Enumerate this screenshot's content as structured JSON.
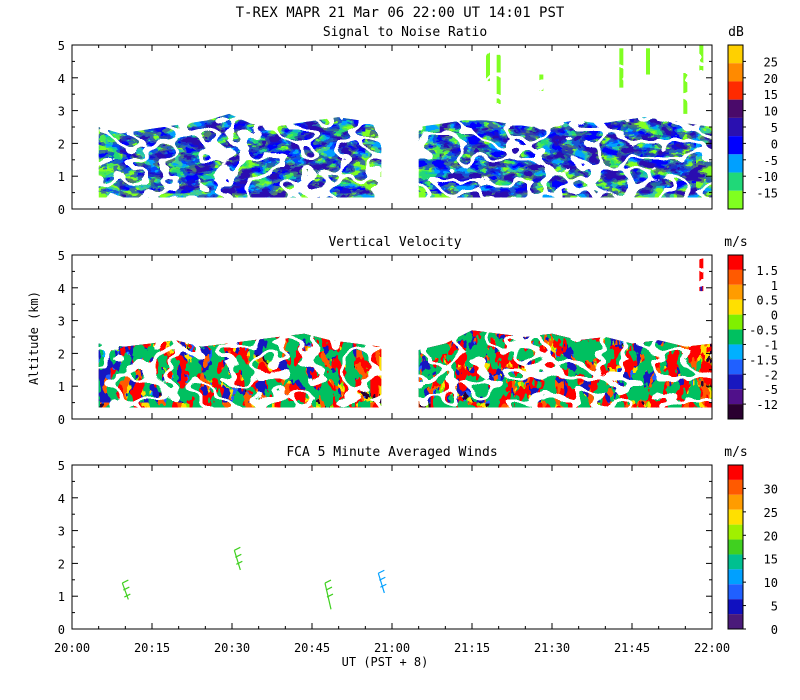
{
  "title": "T-REX   MAPR 21 Mar 06   22:00 UT   14:01   PST",
  "chart_data": [
    {
      "type": "heatmap",
      "title": "Signal to Noise Ratio",
      "ylabel": "",
      "ylim": [
        0,
        5
      ],
      "yticks": [
        "0",
        "1",
        "2",
        "3",
        "4",
        "5"
      ],
      "colorbar": {
        "unit": "dB",
        "labels": [
          "25",
          "20",
          "15",
          "10",
          "5",
          "0",
          "-5",
          "-10",
          "-15"
        ],
        "colors": [
          "#ffd000",
          "#ff8a00",
          "#ff2a00",
          "#4a0a6a",
          "#2a10b0",
          "#0000ff",
          "#00a0ff",
          "#20d878",
          "#80ff20"
        ]
      },
      "data_gap_ut": [
        "20:58",
        "21:05"
      ],
      "base_height_km": 0.35,
      "top_height_km": [
        2.5,
        2.3,
        2.4,
        2.5,
        2.6,
        2.7,
        2.9,
        2.6,
        2.5,
        2.6,
        2.7,
        2.8,
        2.7,
        2.6,
        2.5,
        2.6,
        2.7,
        2.7,
        2.6,
        2.5,
        2.6,
        2.7,
        2.6,
        2.7,
        2.8,
        2.7,
        2.6,
        2.5
      ]
    },
    {
      "type": "heatmap",
      "title": "Vertical Velocity",
      "ylabel": "Altitude (km)",
      "ylim": [
        0,
        5
      ],
      "yticks": [
        "0",
        "1",
        "2",
        "3",
        "4",
        "5"
      ],
      "colorbar": {
        "unit": "m/s",
        "labels": [
          "1.5",
          "1",
          "0.5",
          "0",
          "-0.5",
          "-1",
          "-1.5",
          "-2",
          "-5",
          "-12"
        ],
        "colors": [
          "#ff0000",
          "#ff5a00",
          "#ff9c00",
          "#ffe000",
          "#80f000",
          "#00c060",
          "#00b0ff",
          "#2060ff",
          "#1818c0",
          "#50108a",
          "#2a0030"
        ]
      },
      "data_gap_ut": [
        "20:58",
        "21:05"
      ],
      "top_height_km": [
        2.3,
        2.2,
        2.3,
        2.4,
        2.2,
        2.3,
        2.4,
        2.5,
        2.6,
        2.4,
        2.3,
        2.2,
        2.1,
        2.3,
        2.7,
        2.6,
        2.5,
        2.6,
        2.4,
        2.5,
        2.3,
        2.4,
        2.2,
        2.3
      ]
    },
    {
      "type": "scatter",
      "title": "FCA 5 Minute Averaged Winds",
      "xlabel": "UT  (PST + 8)",
      "ylabel": "",
      "ylim": [
        0,
        5
      ],
      "yticks": [
        "0",
        "1",
        "2",
        "3",
        "4",
        "5"
      ],
      "x_ticks": [
        "20:00",
        "20:15",
        "20:30",
        "20:45",
        "21:00",
        "21:15",
        "21:30",
        "21:45",
        "22:00"
      ],
      "colorbar": {
        "unit": "m/s",
        "labels": [
          "30",
          "25",
          "20",
          "15",
          "10",
          "5",
          "0"
        ],
        "colors": [
          "#ff0000",
          "#ff5a00",
          "#ff9c00",
          "#ffe000",
          "#a0f000",
          "#40d020",
          "#00c090",
          "#00a0ff",
          "#2060ff",
          "#1010c0",
          "#4a1a7a"
        ]
      },
      "barbs": [
        {
          "time": "20:10",
          "alt_km": [
            0.9,
            1.4
          ],
          "speed_ms": 12
        },
        {
          "time": "20:31",
          "alt_km": [
            1.8,
            2.4
          ],
          "speed_ms": 12
        },
        {
          "time": "20:48",
          "alt_km": [
            0.6,
            1.4
          ],
          "speed_ms": 12
        },
        {
          "time": "20:58",
          "alt_km": [
            1.1,
            1.7
          ],
          "speed_ms": 8
        }
      ]
    }
  ]
}
